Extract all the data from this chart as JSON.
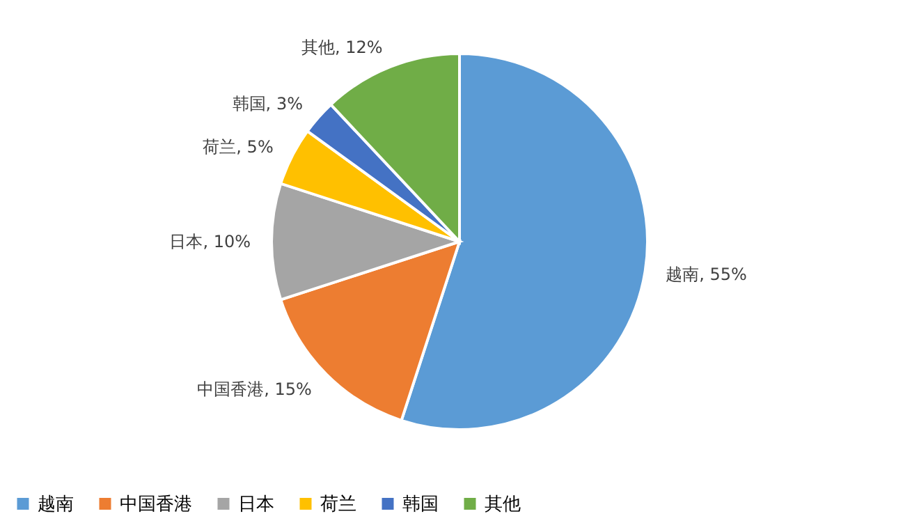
{
  "chart_data": {
    "type": "pie",
    "categories": [
      "越南",
      "中国香港",
      "日本",
      "荷兰",
      "韩国",
      "其他"
    ],
    "values": [
      55,
      15,
      10,
      5,
      3,
      12
    ],
    "colors": [
      "#5b9bd5",
      "#ed7d31",
      "#a5a5a5",
      "#ffc000",
      "#4472c4",
      "#70ad47"
    ],
    "value_labels": [
      "越南, 55%",
      "中国香港, 15%",
      "日本, 10%",
      "荷兰, 5%",
      "韩国, 3%",
      "其他, 12%"
    ],
    "legend": "bottom"
  }
}
